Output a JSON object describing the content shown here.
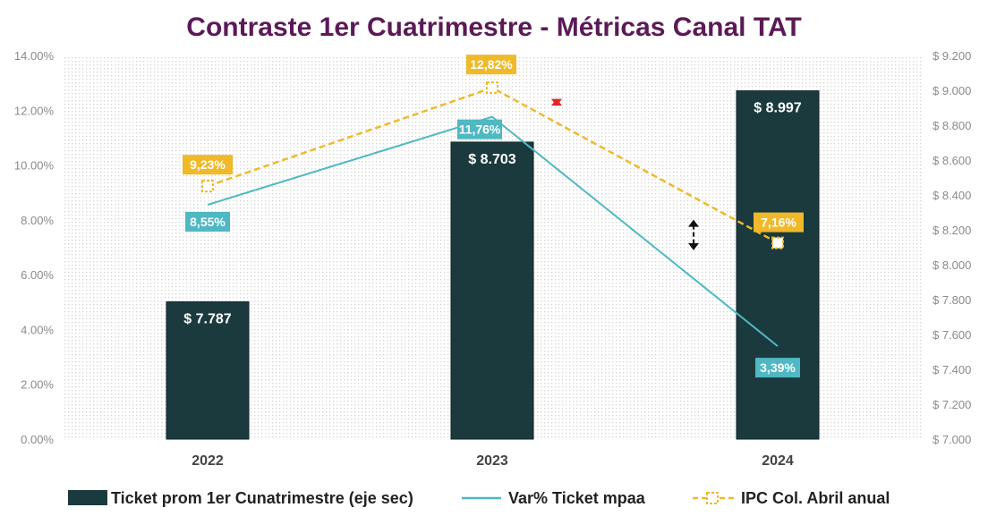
{
  "chart_data": {
    "type": "bar",
    "title": "Contraste 1er Cuatrimestre - Métricas Canal TAT",
    "categories": [
      "2022",
      "2023",
      "2024"
    ],
    "y_left": {
      "min": 0,
      "max": 14,
      "unit": "%",
      "ticks": [
        "0.00%",
        "2.00%",
        "4.00%",
        "6.00%",
        "8.00%",
        "10.00%",
        "12.00%",
        "14.00%"
      ]
    },
    "y_right": {
      "min": 7000,
      "max": 9200,
      "ticks": [
        "$ 7.000",
        "$ 7.200",
        "$ 7.400",
        "$ 7.600",
        "$ 7.800",
        "$ 8.000",
        "$ 8.200",
        "$ 8.400",
        "$ 8.600",
        "$ 8.800",
        "$ 9.000",
        "$ 9.200"
      ]
    },
    "grid": "dotted background",
    "legend_position": "bottom",
    "series": [
      {
        "name": "Ticket prom 1er Cunatrimestre (eje sec)",
        "kind": "bar",
        "axis": "right",
        "values": [
          7787,
          8703,
          8997
        ],
        "labels": [
          "$ 7.787",
          "$ 8.703",
          "$ 8.997"
        ],
        "color": "#1b3a3e"
      },
      {
        "name": "Var% Ticket mpaa",
        "kind": "line",
        "axis": "left",
        "values": [
          8.55,
          11.76,
          3.39
        ],
        "labels": [
          "8,55%",
          "11,76%",
          "3,39%"
        ],
        "color": "#4fb8c3"
      },
      {
        "name": "IPC Col. Abril anual",
        "kind": "dashed-line",
        "axis": "left",
        "values": [
          9.23,
          12.82,
          7.16
        ],
        "labels": [
          "9,23%",
          "12,82%",
          "7,16%"
        ],
        "color": "#f0b92a"
      }
    ],
    "annotations": [
      {
        "kind": "double-arrow",
        "category": "2023",
        "from": 12.82,
        "to": 11.76,
        "color": "#e0282b"
      },
      {
        "kind": "double-arrow",
        "category": "2024",
        "from": 8.4,
        "to": 6.5,
        "color": "#111111"
      }
    ]
  },
  "colors": {
    "title": "#5b1a57",
    "bar": "#1b3a3e",
    "line": "#4fb8c3",
    "ipc": "#f0b92a",
    "grid_dot": "#d4d4d4"
  }
}
